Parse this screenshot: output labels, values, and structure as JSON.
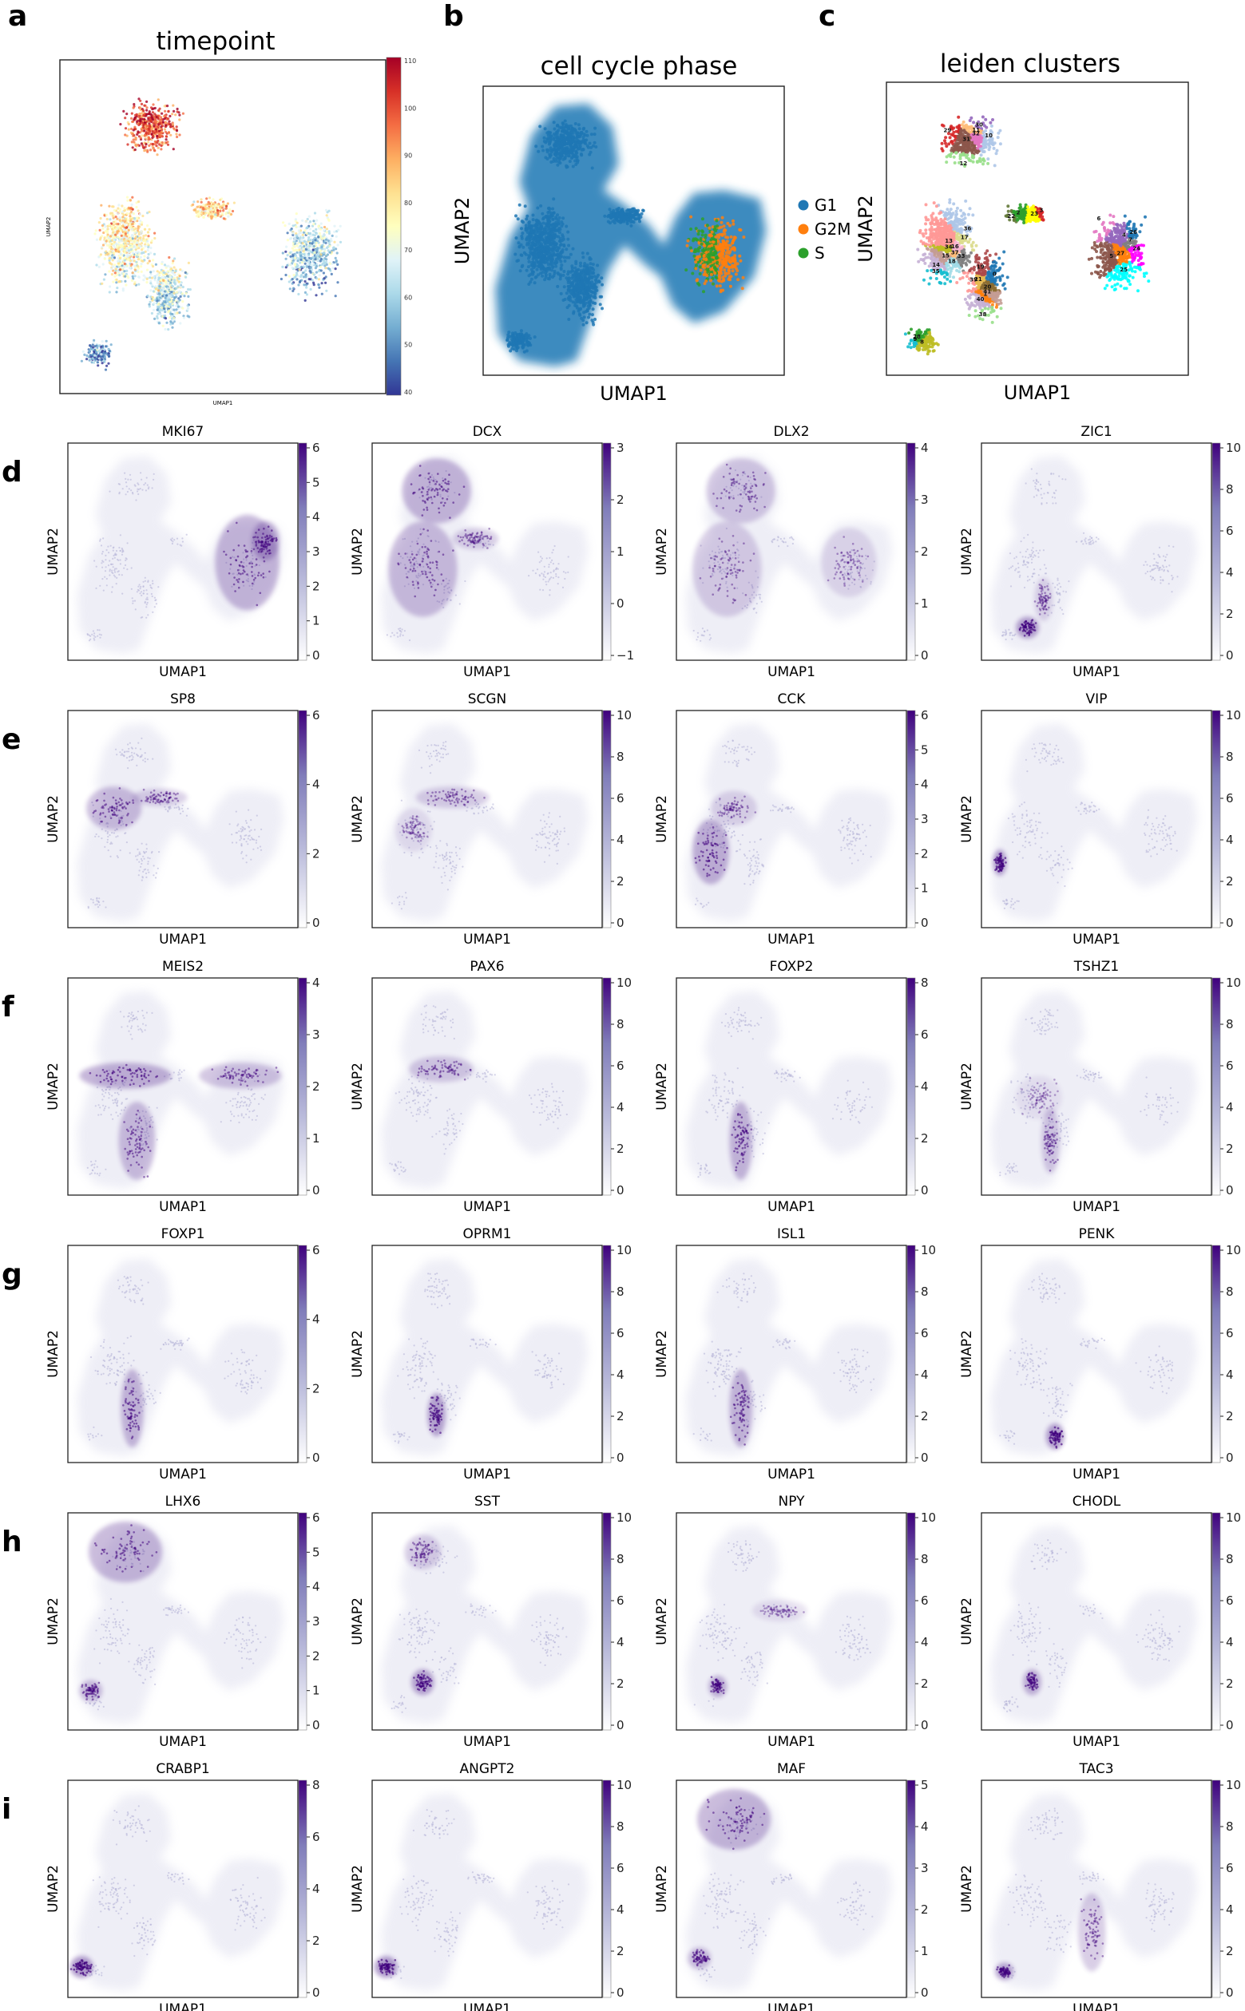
{
  "top_panels": [
    {
      "letter": "a",
      "title": "timepoint",
      "xlabel": "UMAP1",
      "ylabel": "UMAP2",
      "colorbar": {
        "ticks": [
          "110",
          "100",
          "90",
          "80",
          "70",
          "60",
          "50",
          "40"
        ],
        "palette": [
          "#313695",
          "#4575b4",
          "#74add1",
          "#abd9e9",
          "#e0f3f8",
          "#ffffbf",
          "#fee090",
          "#fdae61",
          "#f46d43",
          "#d73027",
          "#a50026"
        ]
      }
    },
    {
      "letter": "b",
      "title": "cell cycle phase",
      "xlabel": "UMAP1",
      "ylabel": "UMAP2",
      "legend": [
        {
          "label": "G1",
          "color": "#1f77b4"
        },
        {
          "label": "G2M",
          "color": "#ff7f0e"
        },
        {
          "label": "S",
          "color": "#2ca02c"
        }
      ]
    },
    {
      "letter": "c",
      "title": "leiden clusters",
      "xlabel": "UMAP1",
      "ylabel": "UMAP2",
      "cluster_labels": [
        "0",
        "1",
        "2",
        "3",
        "4",
        "5",
        "6",
        "7",
        "8",
        "9",
        "10",
        "11",
        "12",
        "13",
        "14",
        "15",
        "16",
        "17",
        "18",
        "19",
        "20",
        "21",
        "22",
        "23",
        "24",
        "25",
        "26",
        "27",
        "28",
        "29",
        "30",
        "31",
        "32",
        "33",
        "34",
        "35",
        "36",
        "37",
        "38",
        "39",
        "40",
        "41"
      ]
    }
  ],
  "chart_data": {
    "type": "scatter",
    "xlabel": "UMAP1",
    "ylabel": "UMAP2",
    "expression_colormap": [
      "#ffffff",
      "#3f007d"
    ],
    "rows": [
      {
        "letter": "d",
        "genes": [
          {
            "name": "MKI67",
            "ticks": [
              "0",
              "1",
              "2",
              "3",
              "4",
              "5",
              "6"
            ],
            "region": "progenitor"
          },
          {
            "name": "DCX",
            "ticks": [
              "−1",
              "0",
              "1",
              "2",
              "3"
            ],
            "region": "broad"
          },
          {
            "name": "DLX2",
            "ticks": [
              "0",
              "1",
              "2",
              "3",
              "4"
            ],
            "region": "broad-light"
          },
          {
            "name": "ZIC1",
            "ticks": [
              "0",
              "2",
              "4",
              "6",
              "8",
              "10"
            ],
            "region": "lower-left"
          }
        ]
      },
      {
        "letter": "e",
        "genes": [
          {
            "name": "SP8",
            "ticks": [
              "0",
              "2",
              "4",
              "6"
            ],
            "region": "mid-left"
          },
          {
            "name": "SCGN",
            "ticks": [
              "0",
              "2",
              "4",
              "6",
              "8",
              "10"
            ],
            "region": "mid-left-light"
          },
          {
            "name": "CCK",
            "ticks": [
              "0",
              "1",
              "2",
              "3",
              "4",
              "5",
              "6"
            ],
            "region": "left"
          },
          {
            "name": "VIP",
            "ticks": [
              "0",
              "2",
              "4",
              "6",
              "8",
              "10"
            ],
            "region": "left-small"
          }
        ]
      },
      {
        "letter": "f",
        "genes": [
          {
            "name": "MEIS2",
            "ticks": [
              "0",
              "1",
              "2",
              "3",
              "4"
            ],
            "region": "band"
          },
          {
            "name": "PAX6",
            "ticks": [
              "0",
              "2",
              "4",
              "6",
              "8",
              "10"
            ],
            "region": "band-light"
          },
          {
            "name": "FOXP2",
            "ticks": [
              "0",
              "2",
              "4",
              "6",
              "8"
            ],
            "region": "streak"
          },
          {
            "name": "TSHZ1",
            "ticks": [
              "0",
              "2",
              "4",
              "6",
              "8",
              "10"
            ],
            "region": "streak-light"
          }
        ]
      },
      {
        "letter": "g",
        "genes": [
          {
            "name": "FOXP1",
            "ticks": [
              "0",
              "2",
              "4",
              "6"
            ],
            "region": "streak"
          },
          {
            "name": "OPRM1",
            "ticks": [
              "0",
              "2",
              "4",
              "6",
              "8",
              "10"
            ],
            "region": "streak-dots"
          },
          {
            "name": "ISL1",
            "ticks": [
              "0",
              "2",
              "4",
              "6",
              "8",
              "10"
            ],
            "region": "streak"
          },
          {
            "name": "PENK",
            "ticks": [
              "0",
              "2",
              "4",
              "6",
              "8",
              "10"
            ],
            "region": "bottom"
          }
        ]
      },
      {
        "letter": "h",
        "genes": [
          {
            "name": "LHX6",
            "ticks": [
              "0",
              "1",
              "2",
              "3",
              "4",
              "5",
              "6"
            ],
            "region": "top-left"
          },
          {
            "name": "SST",
            "ticks": [
              "0",
              "2",
              "4",
              "6",
              "8",
              "10"
            ],
            "region": "spot"
          },
          {
            "name": "NPY",
            "ticks": [
              "0",
              "2",
              "4",
              "6",
              "8",
              "10"
            ],
            "region": "spot-light"
          },
          {
            "name": "CHODL",
            "ticks": [
              "0",
              "2",
              "4",
              "6",
              "8",
              "10"
            ],
            "region": "spot-dots"
          }
        ]
      },
      {
        "letter": "i",
        "genes": [
          {
            "name": "CRABP1",
            "ticks": [
              "0",
              "2",
              "4",
              "6",
              "8"
            ],
            "region": "corner"
          },
          {
            "name": "ANGPT2",
            "ticks": [
              "0",
              "2",
              "4",
              "6",
              "8",
              "10"
            ],
            "region": "corner"
          },
          {
            "name": "MAF",
            "ticks": [
              "0",
              "1",
              "2",
              "3",
              "4",
              "5"
            ],
            "region": "top-left"
          },
          {
            "name": "TAC3",
            "ticks": [
              "0",
              "2",
              "4",
              "6",
              "8",
              "10"
            ],
            "region": "streak-corner"
          }
        ]
      }
    ]
  }
}
